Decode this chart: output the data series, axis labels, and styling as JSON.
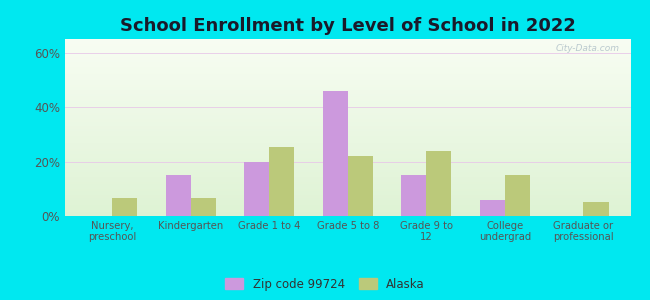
{
  "title": "School Enrollment by Level of School in 2022",
  "categories": [
    "Nursery,\npreschool",
    "Kindergarten",
    "Grade 1 to 4",
    "Grade 5 to 8",
    "Grade 9 to\n12",
    "College\nundergrad",
    "Graduate or\nprofessional"
  ],
  "zip_values": [
    0.0,
    15.0,
    20.0,
    46.0,
    15.0,
    6.0,
    0.0
  ],
  "alaska_values": [
    6.5,
    6.5,
    25.5,
    22.0,
    24.0,
    15.0,
    5.0
  ],
  "zip_color": "#cc99dd",
  "alaska_color": "#bbc97a",
  "background_outer": "#00e8f0",
  "ylim": [
    0,
    65
  ],
  "yticks": [
    0,
    20,
    40,
    60
  ],
  "ytick_labels": [
    "0%",
    "20%",
    "40%",
    "60%"
  ],
  "title_fontsize": 13,
  "legend_label_zip": "Zip code 99724",
  "legend_label_alaska": "Alaska",
  "watermark": "City-Data.com"
}
